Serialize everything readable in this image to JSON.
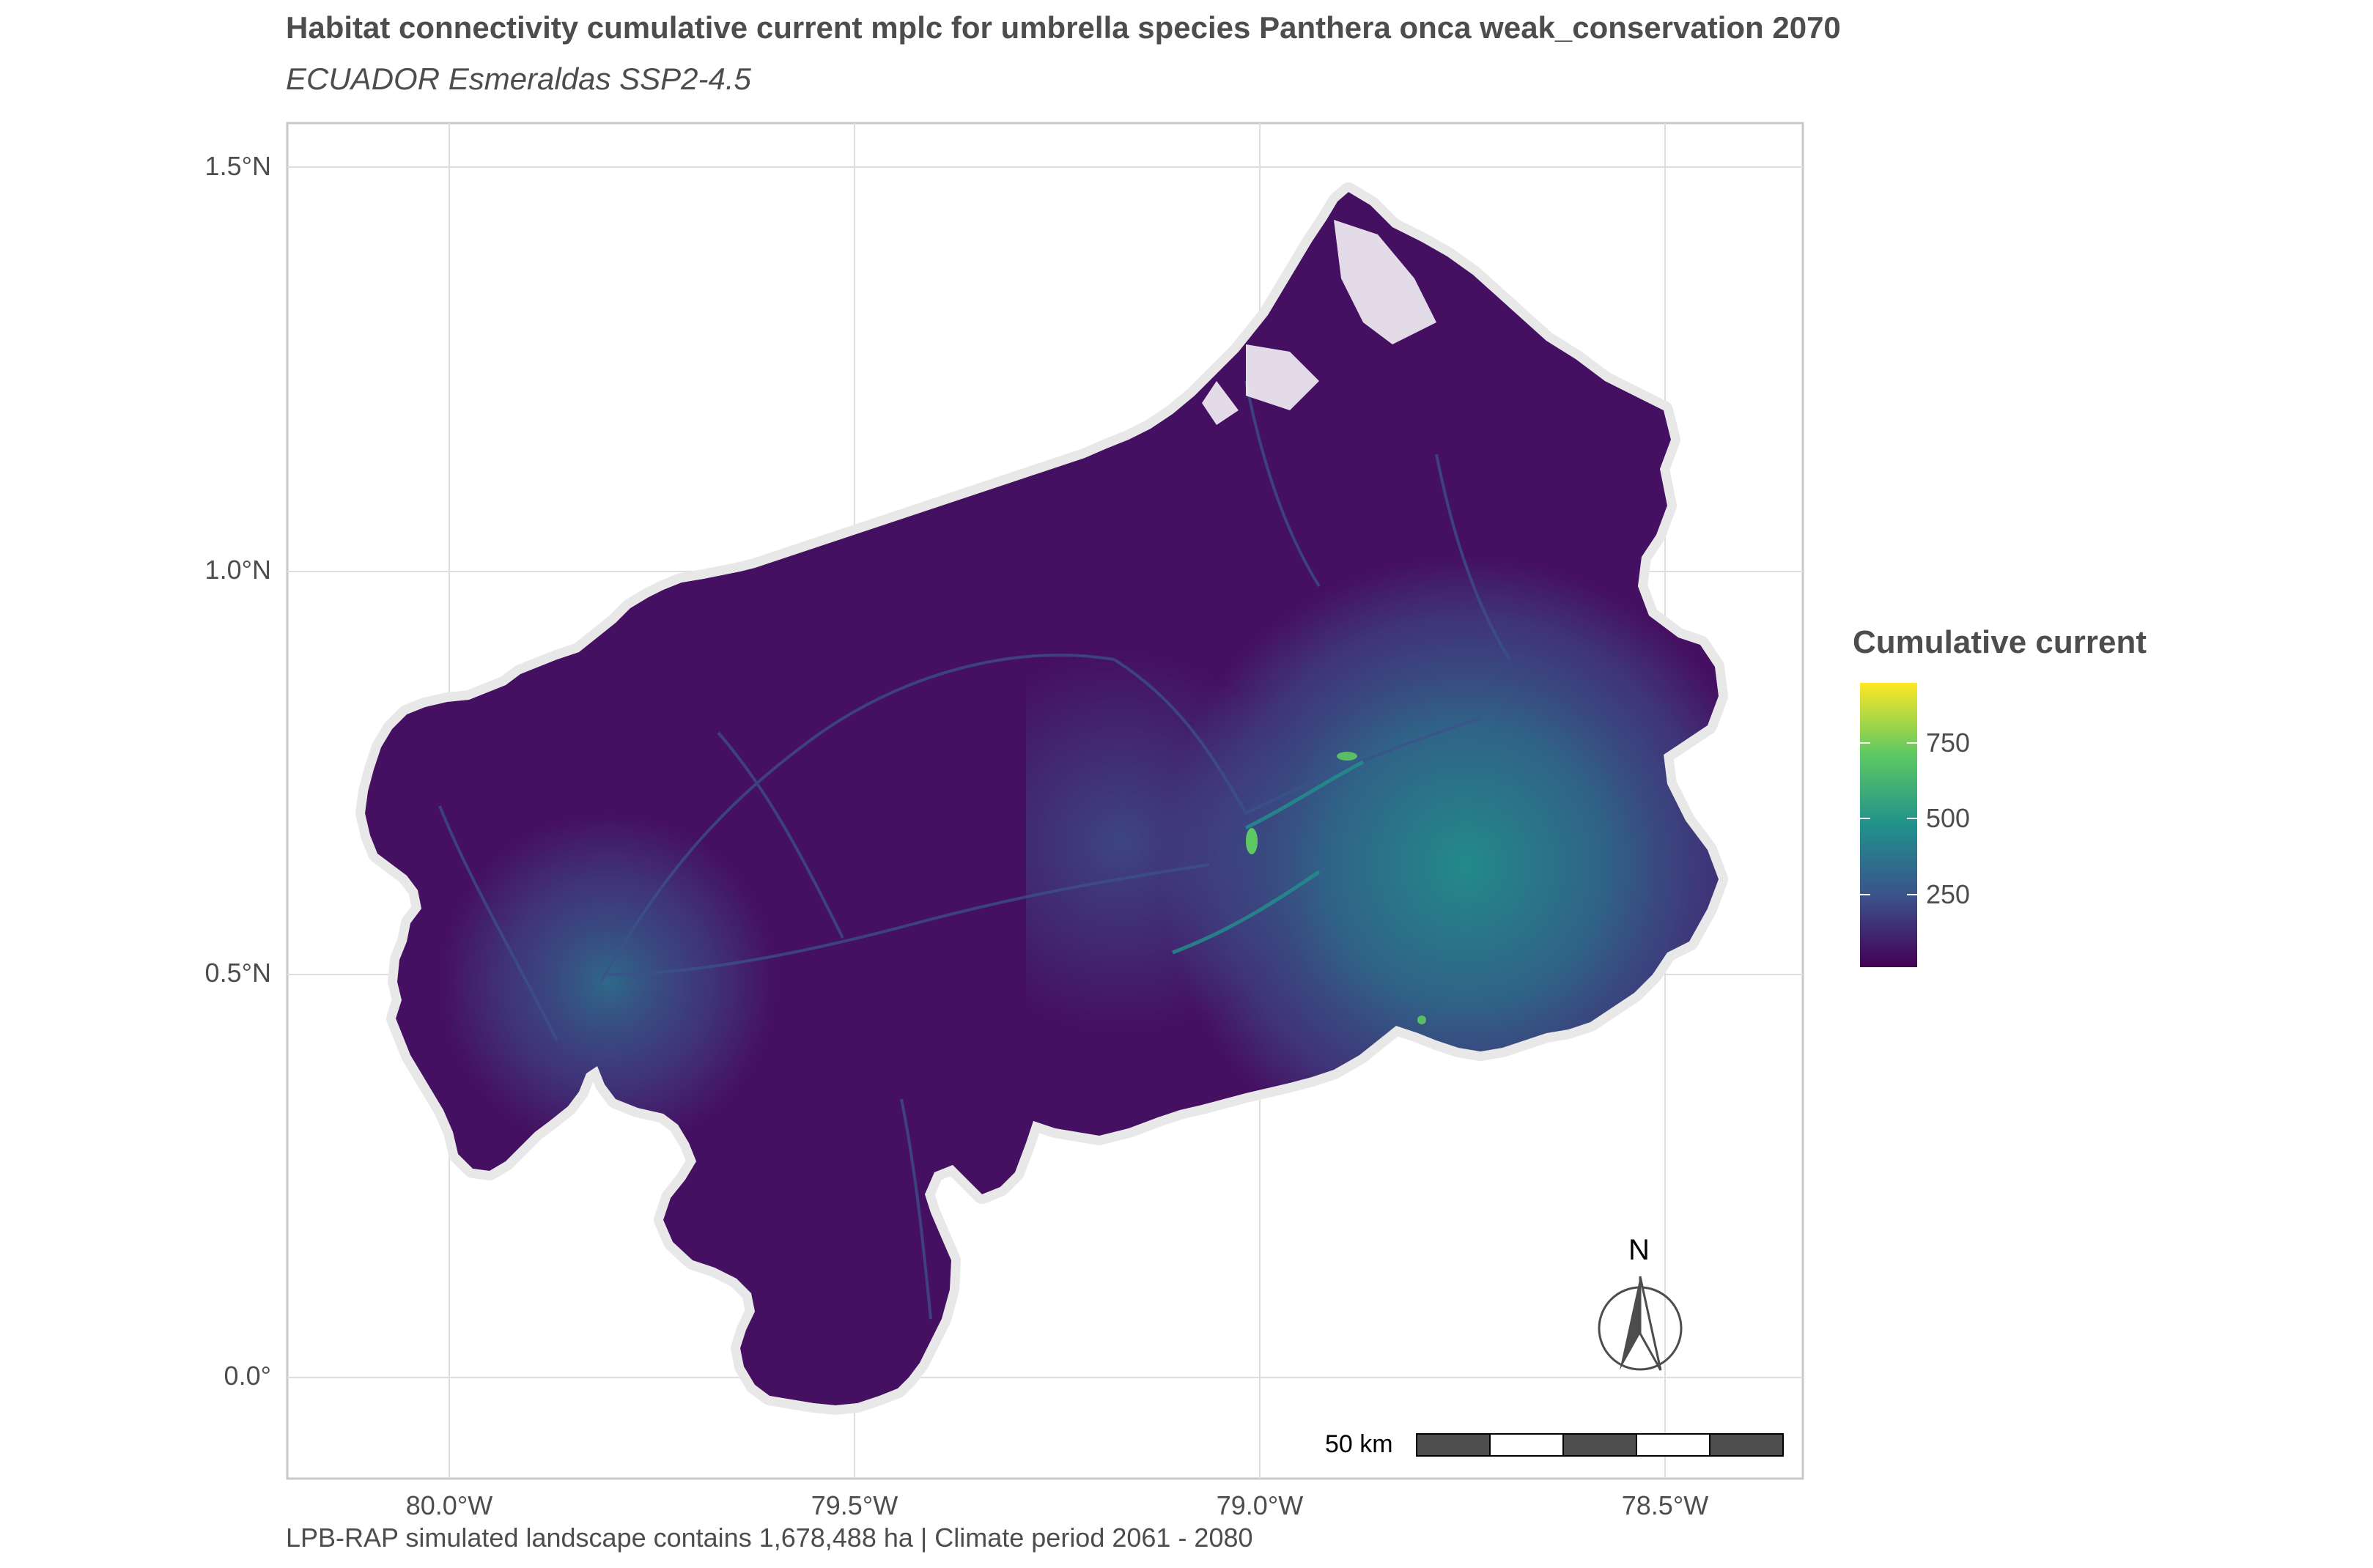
{
  "header": {
    "title": "Habitat connectivity cumulative current mplc for umbrella species Panthera onca weak_conservation 2070",
    "subtitle": "ECUADOR Esmeraldas SSP2-4.5"
  },
  "caption": "LPB-RAP simulated landscape contains 1,678,488 ha | Climate period 2061 - 2080",
  "axes": {
    "y_ticks": [
      "1.5°N",
      "1.0°N",
      "0.5°N",
      "0.0°"
    ],
    "x_ticks": [
      "80.0°W",
      "79.5°W",
      "79.0°W",
      "78.5°W"
    ]
  },
  "legend": {
    "title": "Cumulative current",
    "ticks": [
      "750",
      "500",
      "250"
    ],
    "min": 0,
    "max": 950,
    "colors": [
      "#440154",
      "#3b528b",
      "#21918c",
      "#5ec962",
      "#fde725"
    ]
  },
  "north_arrow": {
    "label": "N",
    "icon": "north-arrow-icon"
  },
  "scale_bar": {
    "label": "50 km"
  },
  "colors": {
    "low": "#440154",
    "low_mid": "#472d7b",
    "mid": "#3b528b",
    "teal": "#2c728e",
    "high": "#21918c",
    "green": "#5ec962",
    "yellow": "#fde725",
    "outline": "#e8e8e8",
    "grid": "#dedede",
    "panel_border": "#c8c8c8"
  }
}
